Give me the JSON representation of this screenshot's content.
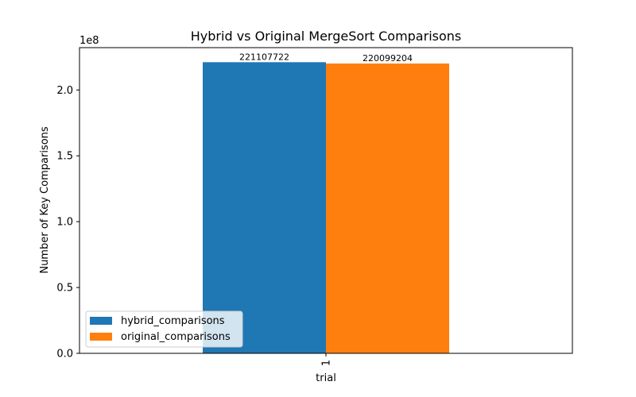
{
  "chart_data": {
    "type": "bar",
    "title": "Hybrid vs Original MergeSort Comparisons",
    "xlabel": "trial",
    "ylabel": "Number of Key Comparisons",
    "y_offset_text": "1e8",
    "categories": [
      "1"
    ],
    "series": [
      {
        "name": "hybrid_comparisons",
        "color": "#1f77b4",
        "values": [
          221107722
        ],
        "labels": [
          "221107722"
        ]
      },
      {
        "name": "original_comparisons",
        "color": "#ff7f0e",
        "values": [
          220099204
        ],
        "labels": [
          "220099204"
        ]
      }
    ],
    "ylim": [
      0,
      232160108
    ],
    "yticks": [
      0,
      50000000,
      100000000,
      150000000,
      200000000
    ],
    "ytick_labels": [
      "0.0",
      "0.5",
      "1.0",
      "1.5",
      "2.0"
    ],
    "grid": false,
    "legend_position": "lower-left"
  }
}
